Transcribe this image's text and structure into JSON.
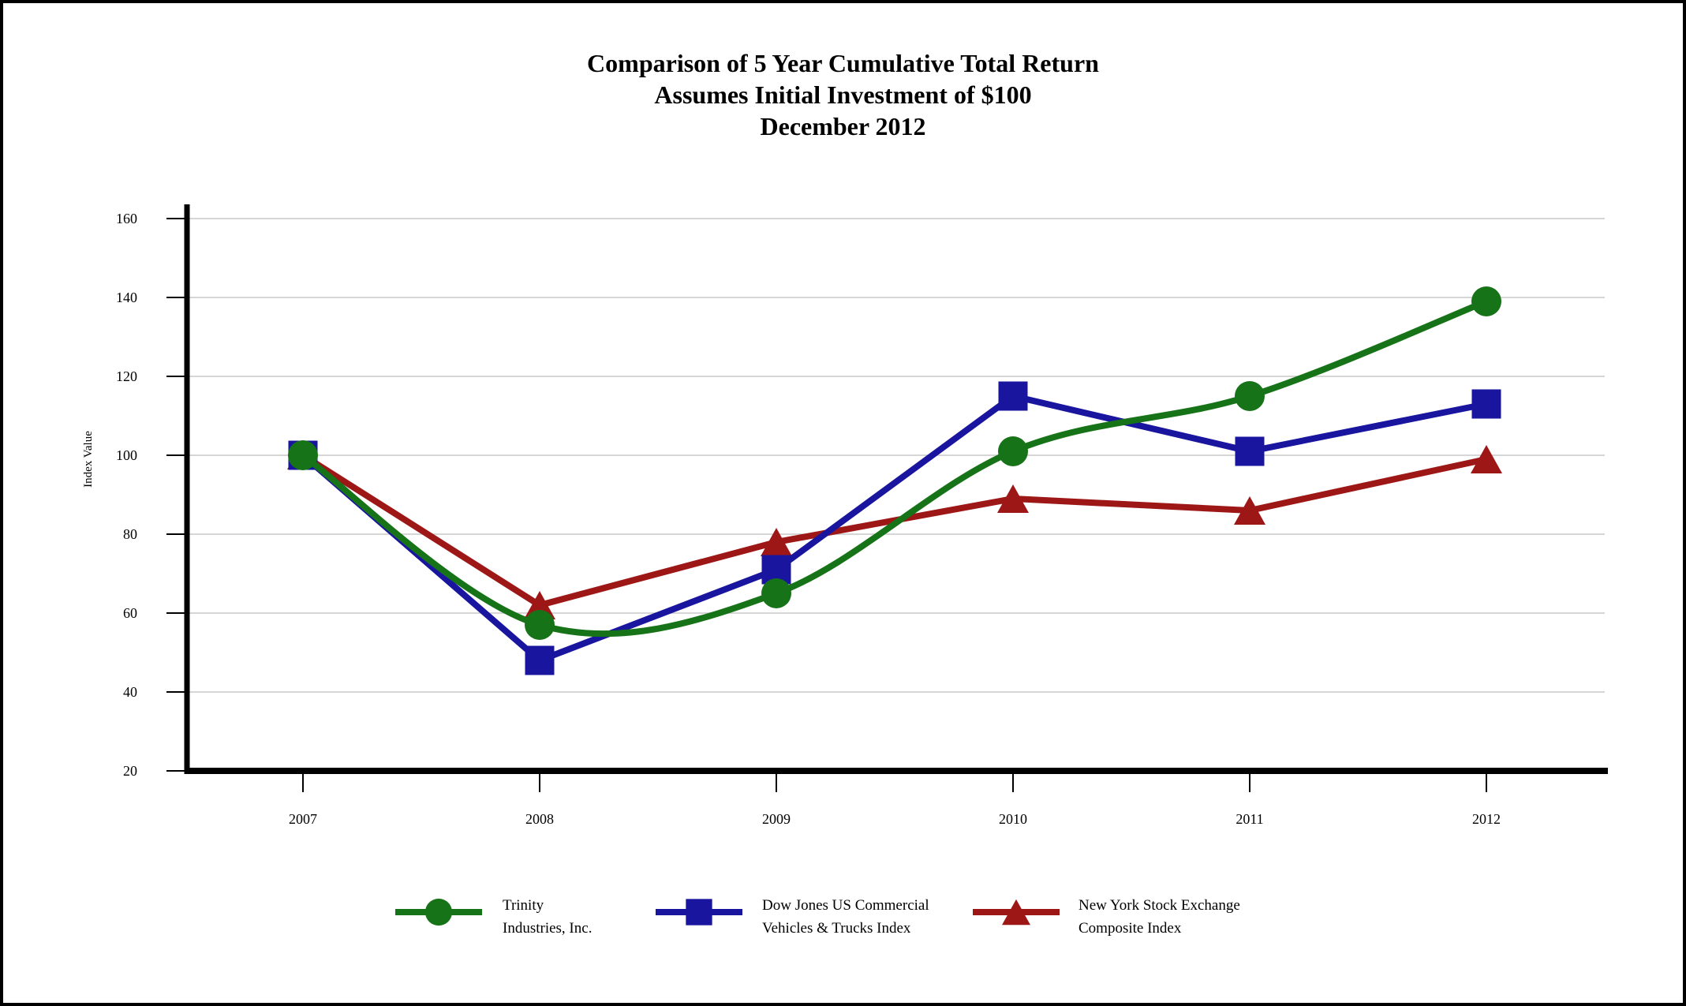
{
  "chart_data": {
    "type": "line",
    "title_lines": [
      "Comparison of 5 Year Cumulative Total Return",
      "Assumes Initial Investment of $100",
      "December 2012"
    ],
    "x": [
      "2007",
      "2008",
      "2009",
      "2010",
      "2011",
      "2012"
    ],
    "xlabel": "",
    "ylabel": "Index Value",
    "ylim": [
      20,
      160
    ],
    "yticks": [
      20,
      40,
      60,
      80,
      100,
      120,
      140,
      160
    ],
    "grid": true,
    "gridline_color": "#c9c9c9",
    "axis_color": "#000000",
    "legend_position": "bottom",
    "series": [
      {
        "name": "Trinity Industries, Inc.",
        "legend_lines": [
          "Trinity",
          "Industries, Inc."
        ],
        "color": "#177317",
        "marker": "circle",
        "line_style": "smooth",
        "values": [
          100,
          57,
          65,
          101,
          115,
          139
        ]
      },
      {
        "name": "Dow Jones US Commercial Vehicles & Trucks Index",
        "legend_lines": [
          "Dow Jones US Commercial",
          "Vehicles & Trucks Index"
        ],
        "color": "#19159f",
        "marker": "square",
        "line_style": "straight",
        "values": [
          100,
          48,
          71,
          115,
          101,
          113
        ]
      },
      {
        "name": "New York Stock Exchange Composite Index",
        "legend_lines": [
          "New York Stock Exchange",
          "Composite Index"
        ],
        "color": "#9e1717",
        "marker": "triangle",
        "line_style": "straight",
        "values": [
          100,
          62,
          78,
          89,
          86,
          99
        ]
      }
    ]
  }
}
